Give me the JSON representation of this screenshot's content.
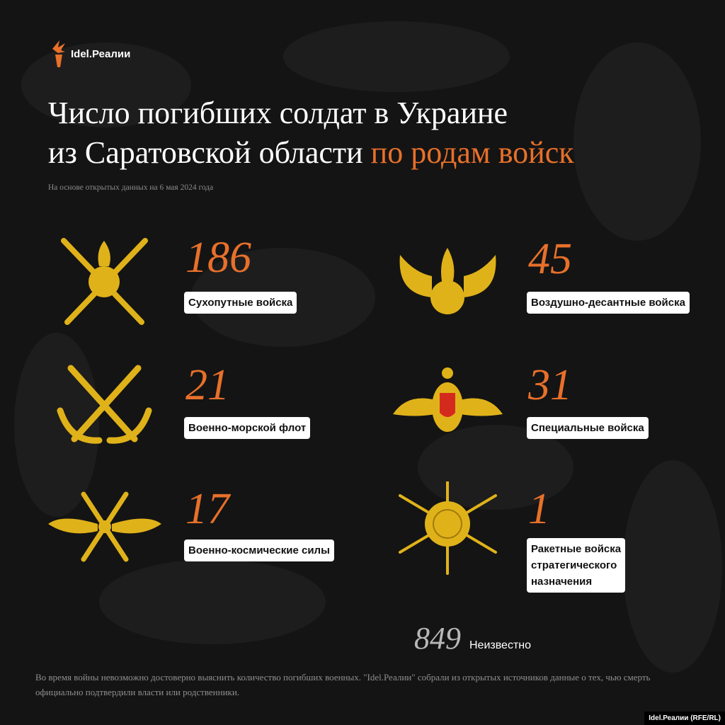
{
  "brand": {
    "logo_text": "Idel.Реалии",
    "credit": "Idel.Реалии (RFE/RL)"
  },
  "header": {
    "title_line1": "Число погибших солдат в Украине",
    "title_line2_plain": "из Саратовской области ",
    "title_line2_accent": "по родам войск",
    "subtitle": "На основе открытых данных на 6 мая 2024 года"
  },
  "colors": {
    "accent": "#e8702a",
    "background": "#141414",
    "emblem": "#e0b21a"
  },
  "items": [
    {
      "value": "186",
      "label": "Сухопутные войска",
      "icon": "crossed-swords-grenade-icon"
    },
    {
      "value": "45",
      "label": "Воздушно-десантные войска",
      "icon": "winged-grenade-icon"
    },
    {
      "value": "21",
      "label": "Военно-морской флот",
      "icon": "crossed-anchors-icon"
    },
    {
      "value": "31",
      "label": "Специальные войска",
      "icon": "double-headed-eagle-icon"
    },
    {
      "value": "17",
      "label": "Военно-космические силы",
      "icon": "winged-propeller-icon"
    },
    {
      "value": "1",
      "label": "Ракетные войска\nстратегического\nназначения",
      "icon": "sun-arrows-sword-icon"
    }
  ],
  "unknown": {
    "value": "849",
    "label": "Неизвестно"
  },
  "note": "Во время войны невозможно достоверно выяснить количество погибших военных. \"Idel.Реалии\" собрали из открытых источников данные о тех, чью смерть официально подтвердили власти или родственники."
}
